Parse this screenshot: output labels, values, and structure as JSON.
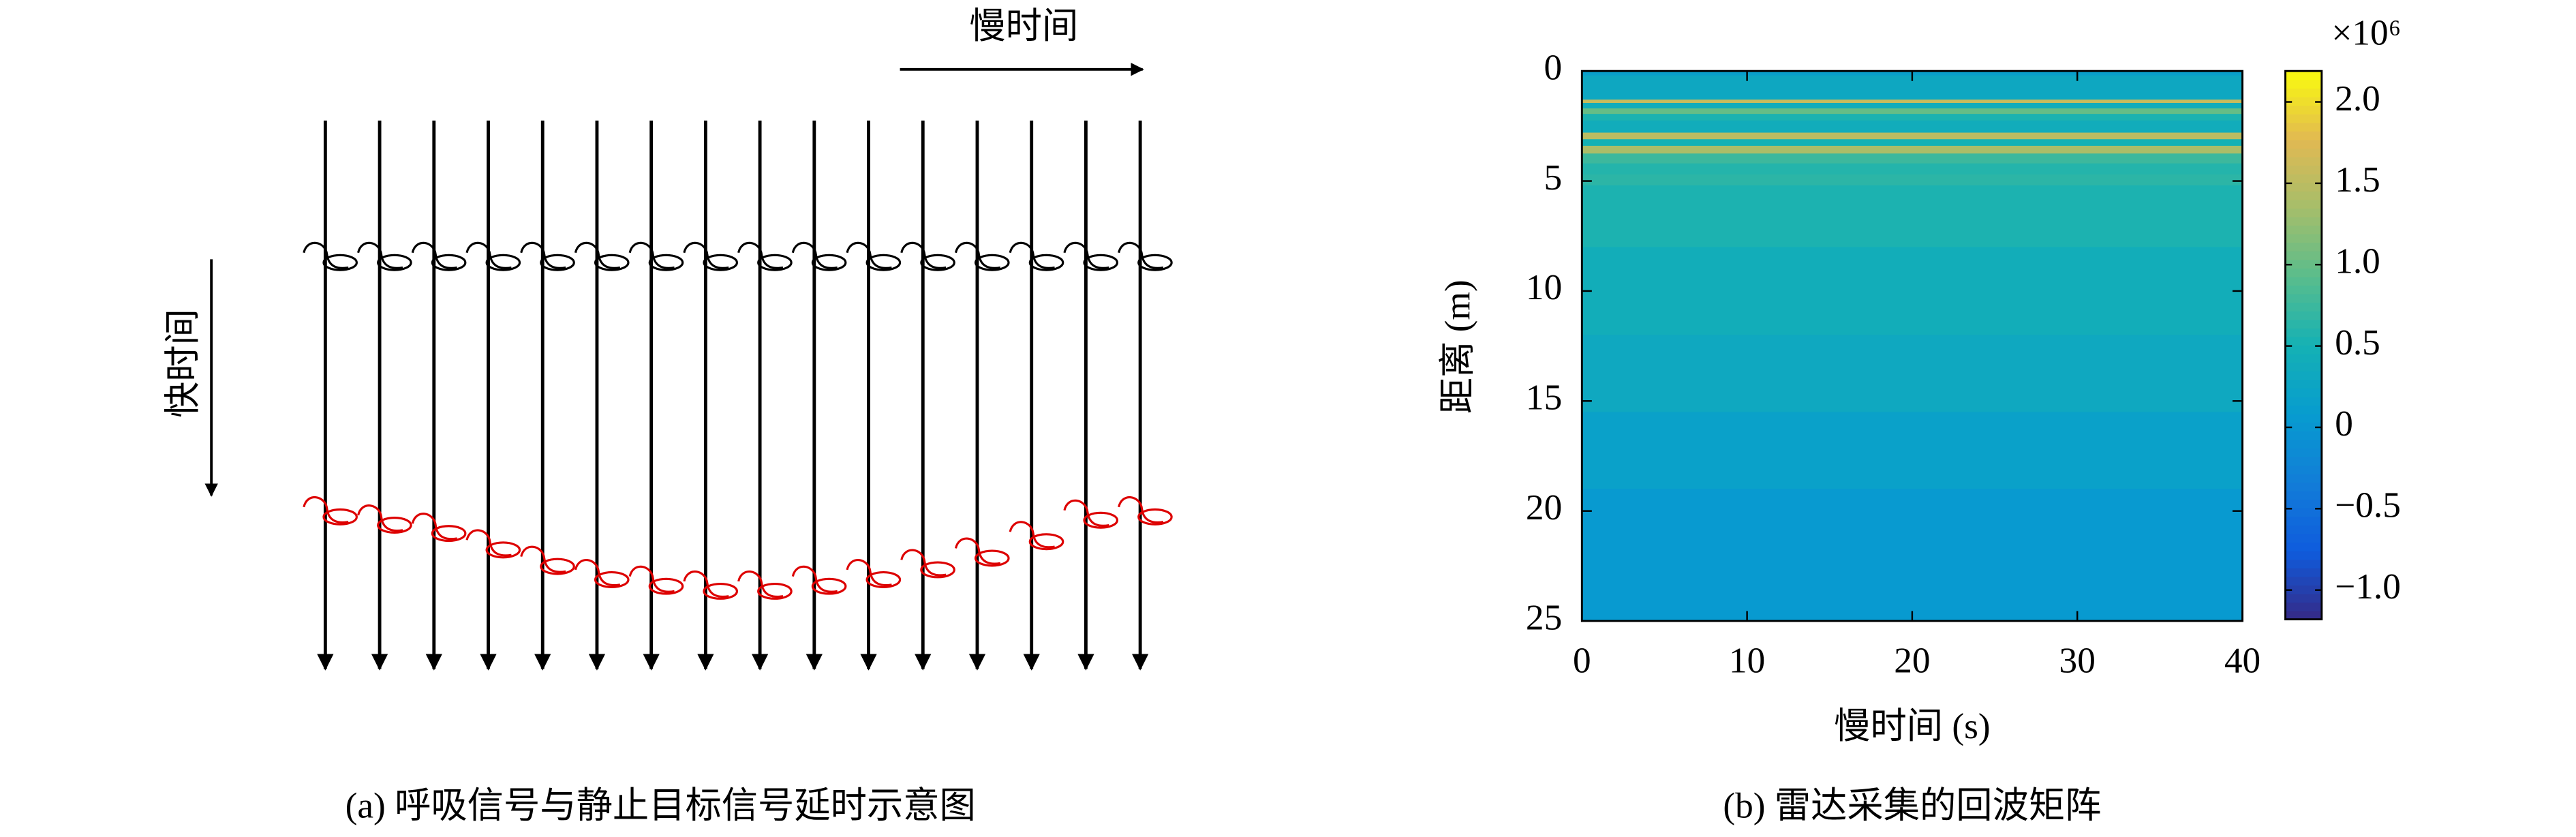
{
  "diagram": {
    "slow_time_label": "慢时间",
    "fast_time_label": "快时间",
    "caption": "(a) 呼吸信号与静止目标信号延时示意图"
  },
  "chart_data": {
    "type": "heatmap",
    "caption": "(b) 雷达采集的回波矩阵",
    "xlabel": "慢时间 (s)",
    "ylabel": "距离 (m)",
    "xlim": [
      0,
      40
    ],
    "xticks": [
      0,
      10,
      20,
      30,
      40
    ],
    "ylim": [
      0,
      25
    ],
    "yticks": [
      0,
      5,
      10,
      15,
      20,
      25
    ],
    "y_inverted": true,
    "y_bins": [
      0,
      0.2,
      1.3,
      1.45,
      1.7,
      1.95,
      2.25,
      2.8,
      3.1,
      3.4,
      3.75,
      4.2,
      4.7,
      5.2,
      8,
      12,
      15.5,
      19,
      25
    ],
    "values": [
      0.15,
      0.3,
      1.6,
      0.4,
      1.0,
      0.55,
      0.4,
      1.5,
      0.5,
      1.4,
      0.75,
      0.6,
      0.65,
      0.55,
      0.42,
      0.32,
      0.18,
      0.05
    ],
    "colormap": "parula",
    "clim": [
      -1.18,
      2.19
    ],
    "cticks": [
      {
        "value": -1,
        "label": "−1.0"
      },
      {
        "value": -0.5,
        "label": "−0.5"
      },
      0,
      0.5,
      {
        "value": 1,
        "label": "1.0"
      },
      1.5,
      {
        "value": 2,
        "label": "2.0"
      }
    ],
    "colorbar_multiplier": "×10⁶"
  }
}
